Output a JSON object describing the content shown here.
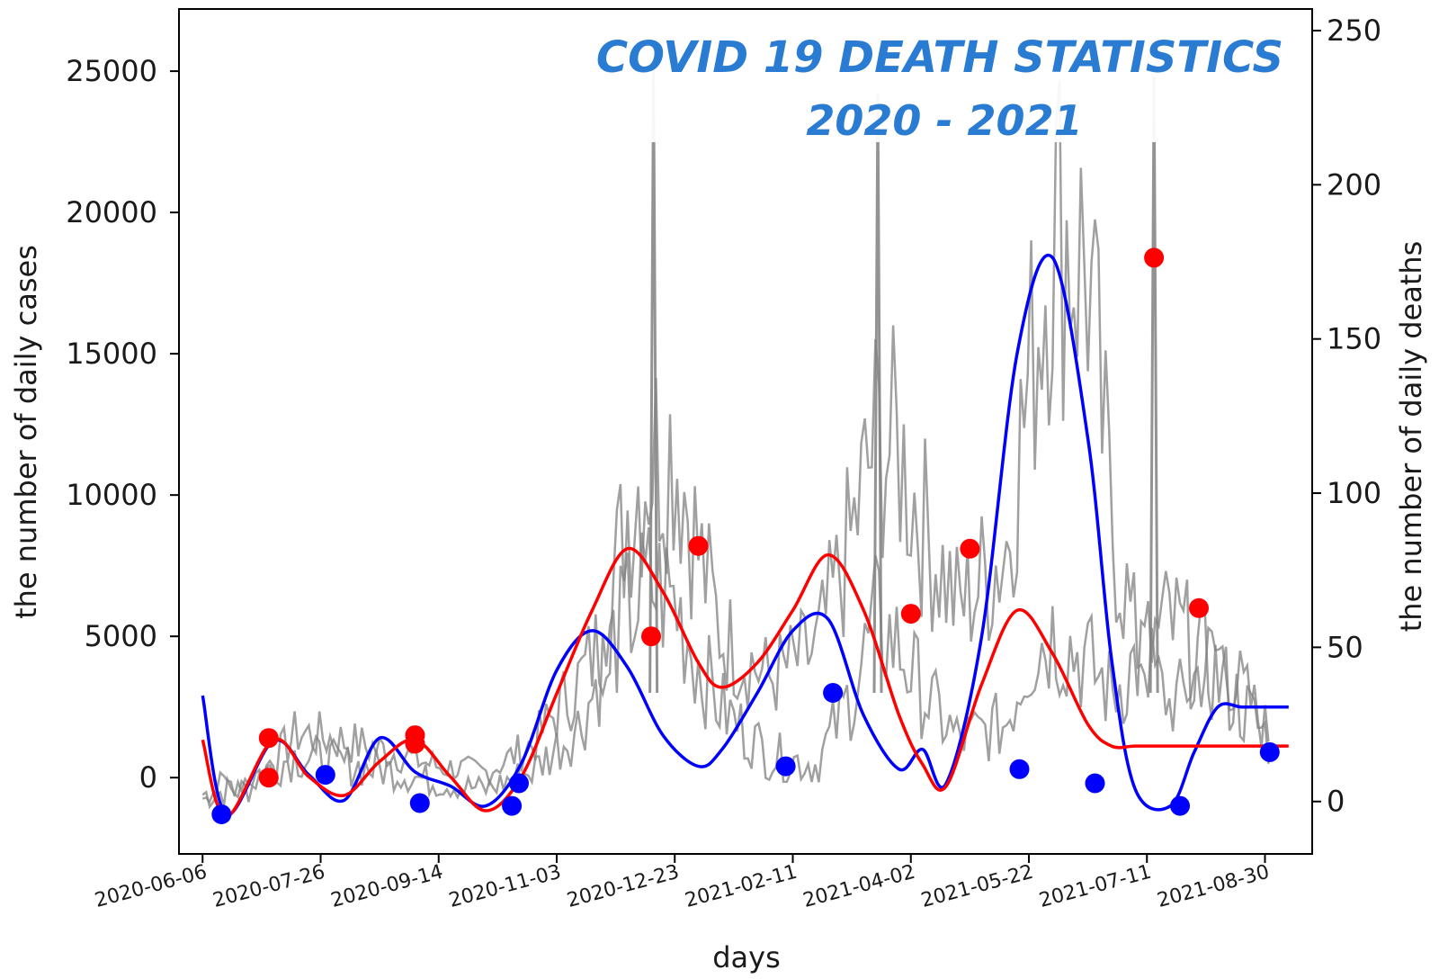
{
  "chart_data": {
    "type": "line",
    "title": "COVID 19 DEATH STATISTICS",
    "subtitle": "2020 - 2021",
    "xlabel": "days",
    "ylabel_left": "the number of daily cases",
    "ylabel_right": "the number of daily deaths",
    "x_tick_labels": [
      "2020-06-06",
      "2020-07-26",
      "2020-09-14",
      "2020-11-03",
      "2020-12-23",
      "2021-02-11",
      "2021-04-02",
      "2021-05-22",
      "2021-07-11",
      "2021-08-30"
    ],
    "y_left_ticks": [
      0,
      5000,
      10000,
      15000,
      20000,
      25000
    ],
    "y_right_ticks": [
      0,
      50,
      100,
      150,
      200,
      250
    ],
    "ylim_left": [
      -2700,
      27200
    ],
    "ylim_right": [
      -17,
      257
    ],
    "grid": false,
    "colors": {
      "cases_fit": "#0000ff",
      "deaths_fit": "#ff0000",
      "raw_daily": "#808080",
      "title": "#2a7bd2"
    },
    "series": [
      {
        "kind": "smoothed",
        "axis": "left",
        "color": "#0000ff",
        "x": [
          0,
          10,
          30,
          45,
          60,
          75,
          90,
          105,
          120,
          135,
          150,
          165,
          180,
          195,
          210,
          220,
          235,
          250,
          265,
          280,
          295,
          305,
          315,
          330,
          345,
          360,
          375,
          385,
          395,
          410,
          420,
          430,
          440,
          450,
          460
        ],
        "y": [
          2900,
          -1300,
          1300,
          100,
          -800,
          1400,
          200,
          -300,
          -1000,
          500,
          3800,
          5200,
          3900,
          1500,
          400,
          1000,
          3000,
          5200,
          5600,
          2200,
          300,
          1000,
          -200,
          5000,
          15000,
          18400,
          12000,
          4200,
          -400,
          -1000,
          900,
          2500,
          2500,
          2500,
          2500
        ]
      },
      {
        "kind": "smoothed",
        "axis": "right",
        "color": "#ff0000",
        "x": [
          0,
          10,
          30,
          45,
          60,
          75,
          90,
          105,
          120,
          135,
          150,
          165,
          180,
          195,
          210,
          220,
          235,
          250,
          265,
          280,
          295,
          305,
          315,
          330,
          345,
          360,
          375,
          385,
          395,
          410,
          420,
          430,
          440,
          450,
          460
        ],
        "y": [
          20,
          -5,
          20,
          8,
          2,
          13,
          20,
          8,
          -3,
          8,
          35,
          62,
          82,
          68,
          45,
          37,
          45,
          62,
          80,
          62,
          28,
          12,
          5,
          38,
          62,
          48,
          25,
          18,
          18,
          18,
          18,
          18,
          18,
          18,
          18
        ]
      },
      {
        "kind": "markers",
        "axis": "left",
        "color": "#0000ff",
        "x": [
          8,
          52,
          92,
          131,
          134,
          247,
          267,
          346,
          378,
          414,
          452
        ],
        "y": [
          -1300,
          100,
          -900,
          -1000,
          -200,
          400,
          3000,
          300,
          -200,
          -1000,
          900
        ]
      },
      {
        "kind": "markers",
        "axis": "left",
        "color": "#ff0000",
        "x": [
          28,
          28,
          90,
          90,
          190,
          210,
          300,
          325,
          403,
          422
        ],
        "y": [
          1400,
          0,
          1500,
          1200,
          5000,
          8200,
          5800,
          8100,
          18400,
          6000
        ]
      },
      {
        "kind": "raw",
        "axis": "left",
        "color": "#808080",
        "x": [
          0,
          20,
          40,
          60,
          80,
          100,
          120,
          140,
          160,
          170,
          180,
          190,
          200,
          210,
          220,
          240,
          260,
          275,
          285,
          295,
          305,
          320,
          340,
          350,
          360,
          375,
          385,
          395,
          410,
          430,
          452
        ],
        "y": [
          -600,
          -400,
          1600,
          1300,
          900,
          400,
          200,
          1200,
          3500,
          5000,
          9500,
          11500,
          11800,
          8000,
          5000,
          3500,
          4500,
          8500,
          12000,
          11500,
          9000,
          6000,
          8000,
          14000,
          20000,
          18000,
          9000,
          5000,
          2500,
          4500,
          1500
        ]
      },
      {
        "kind": "raw",
        "axis": "right",
        "color": "#808080",
        "x": [
          0,
          20,
          40,
          60,
          80,
          100,
          120,
          140,
          160,
          170,
          180,
          190,
          200,
          210,
          220,
          240,
          260,
          275,
          285,
          295,
          305,
          320,
          340,
          350,
          360,
          375,
          385,
          395,
          410,
          430,
          452
        ],
        "y": [
          3,
          8,
          15,
          12,
          10,
          6,
          4,
          10,
          25,
          45,
          60,
          70,
          65,
          45,
          30,
          15,
          12,
          35,
          58,
          50,
          35,
          20,
          25,
          48,
          55,
          45,
          35,
          45,
          58,
          40,
          20
        ]
      }
    ],
    "spikes": [
      {
        "axis": "left",
        "x": 191,
        "y": 25200
      },
      {
        "axis": "left",
        "x": 286,
        "y": 24200
      },
      {
        "axis": "left",
        "x": 403,
        "y": 24800
      }
    ]
  }
}
